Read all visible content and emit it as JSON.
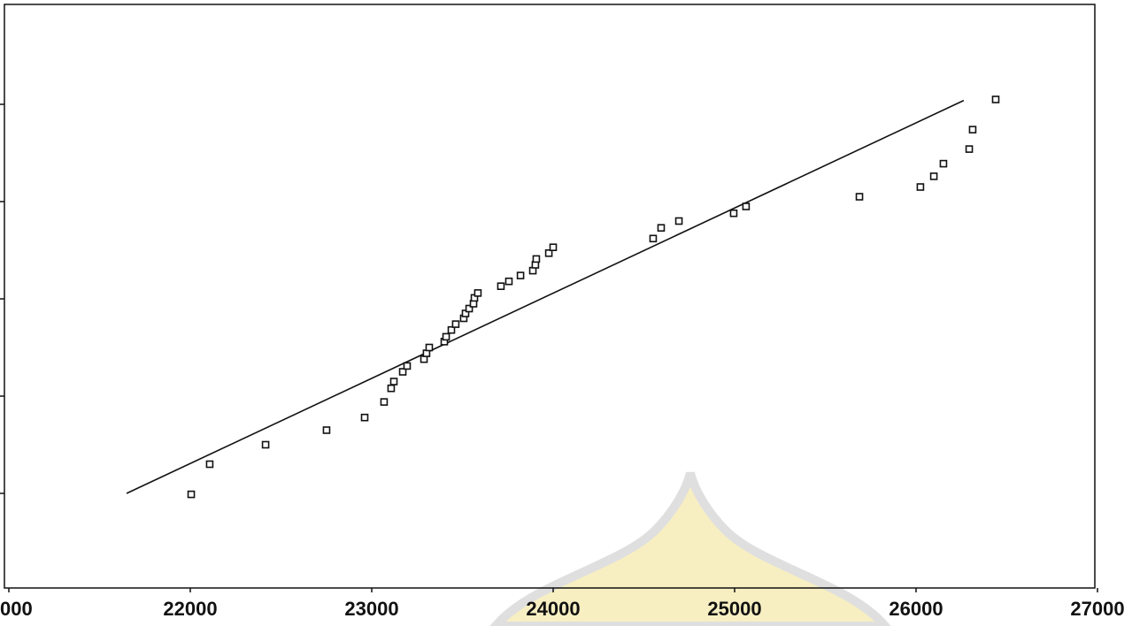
{
  "chart_data": {
    "type": "scatter",
    "x": [
      22005,
      22107,
      22415,
      22751,
      22961,
      23068,
      23107,
      23122,
      23171,
      23195,
      23288,
      23302,
      23317,
      23400,
      23410,
      23439,
      23463,
      23507,
      23517,
      23537,
      23561,
      23566,
      23585,
      23712,
      23756,
      23820,
      23888,
      23902,
      23907,
      23976,
      24000,
      24551,
      24595,
      24693,
      24995,
      25063,
      25688,
      26024,
      26098,
      26151,
      26293,
      26312,
      26439
    ],
    "values": [
      0.99,
      1.3,
      1.5,
      1.65,
      1.78,
      1.94,
      2.08,
      2.15,
      2.25,
      2.31,
      2.38,
      2.44,
      2.5,
      2.56,
      2.61,
      2.68,
      2.74,
      2.8,
      2.85,
      2.9,
      2.95,
      3.01,
      3.06,
      3.13,
      3.18,
      3.24,
      3.29,
      3.35,
      3.41,
      3.47,
      3.53,
      3.62,
      3.73,
      3.8,
      3.88,
      3.95,
      4.05,
      4.15,
      4.26,
      4.39,
      4.54,
      4.74,
      5.05
    ],
    "color": "#111111",
    "line": {
      "x": [
        21649,
        26263
      ],
      "values": [
        1.0,
        5.04
      ]
    },
    "xlim": [
      21000,
      27000
    ],
    "xticks": [
      {
        "value": 21000,
        "label": "000"
      },
      22000,
      23000,
      24000,
      25000,
      26000,
      27000
    ],
    "ylim": [
      0,
      6
    ],
    "yticks": [
      1,
      2,
      3,
      4,
      5
    ]
  }
}
